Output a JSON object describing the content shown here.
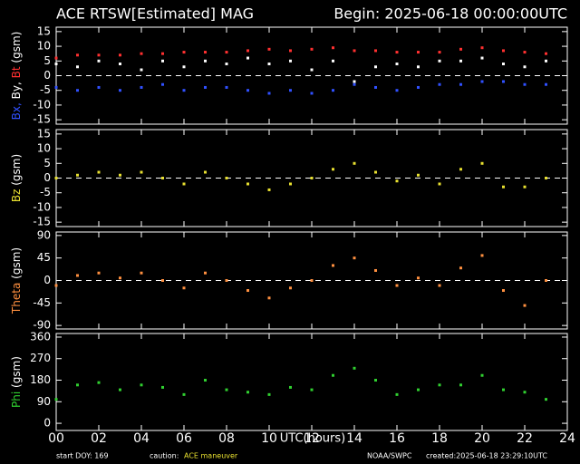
{
  "header": {
    "title": "ACE RTSW[Estimated] MAG",
    "begin": "Begin: 2025-06-18 00:00:00UTC"
  },
  "footer": {
    "doy": "start DOY:  169",
    "caution": "caution:",
    "maneuver": "ACE maneuver",
    "source": "NOAA/SWPC",
    "created": "created:2025-06-18 23:29:10UTC"
  },
  "chart_data": [
    {
      "type": "scatter",
      "ylabel": "(gsm)",
      "ylim": [
        -16.5,
        16.5
      ],
      "yticks": [
        15,
        10,
        5,
        0,
        -5,
        -10,
        -15
      ],
      "zero_line": true,
      "xlim": [
        0,
        24
      ],
      "xticks": [
        {
          "value": 0,
          "label": "00"
        },
        {
          "value": 2,
          "label": "02"
        },
        {
          "value": 4,
          "label": "04"
        },
        {
          "value": 6,
          "label": "06"
        },
        {
          "value": 8,
          "label": "08"
        },
        {
          "value": 10,
          "label": "10"
        },
        {
          "value": 12,
          "label": "12"
        },
        {
          "value": 14,
          "label": "14"
        },
        {
          "value": 16,
          "label": "16"
        },
        {
          "value": 18,
          "label": "18"
        },
        {
          "value": 20,
          "label": "20"
        },
        {
          "value": 22,
          "label": "22"
        },
        {
          "value": 24,
          "label": "24"
        }
      ],
      "x": [
        0,
        1,
        2,
        3,
        4,
        5,
        6,
        7,
        8,
        9,
        10,
        11,
        12,
        13,
        14,
        15,
        16,
        17,
        18,
        19,
        20,
        21,
        22,
        23
      ],
      "series": [
        {
          "name": "Bx,",
          "color": "#3050ff",
          "values": [
            -4,
            -5,
            -4,
            -5,
            -4,
            -3,
            -5,
            -4,
            -4,
            -5,
            -6,
            -5,
            -6,
            -5,
            -3,
            -4,
            -5,
            -4,
            -3,
            -3,
            -2,
            -2,
            -3,
            -3
          ]
        },
        {
          "name": "By,",
          "color": "#ffffff",
          "values": [
            4,
            3,
            5,
            4,
            2,
            5,
            3,
            5,
            4,
            6,
            4,
            5,
            2,
            5,
            -2,
            3,
            4,
            3,
            5,
            5,
            6,
            4,
            3,
            5
          ]
        },
        {
          "name": "Bt",
          "color": "#ff3030",
          "values": [
            6,
            7,
            7,
            7,
            7.5,
            7.5,
            8,
            8,
            8,
            8.5,
            9,
            8.5,
            9,
            9.5,
            8.5,
            8.5,
            8,
            8,
            8,
            9,
            9.5,
            8.5,
            8,
            7.5
          ]
        }
      ]
    },
    {
      "type": "scatter",
      "ylabel": "(gsm)",
      "ylim": [
        -16.5,
        16.5
      ],
      "yticks": [
        15,
        10,
        5,
        0,
        -5,
        -10,
        -15
      ],
      "zero_line": true,
      "xlim": [
        0,
        24
      ],
      "xticks": [
        0,
        2,
        4,
        6,
        8,
        10,
        12,
        14,
        16,
        18,
        20,
        22,
        24
      ],
      "x": [
        0,
        1,
        2,
        3,
        4,
        5,
        6,
        7,
        8,
        9,
        10,
        11,
        12,
        13,
        14,
        15,
        16,
        17,
        18,
        19,
        20,
        21,
        22,
        23
      ],
      "series": [
        {
          "name": "Bz",
          "color": "#e8e030",
          "values": [
            0,
            1,
            2,
            1,
            2,
            0,
            -2,
            2,
            0,
            -2,
            -4,
            -2,
            0,
            3,
            5,
            2,
            -1,
            1,
            -2,
            3,
            5,
            -3,
            -3,
            0
          ]
        }
      ]
    },
    {
      "type": "scatter",
      "ylabel": "(gsm)",
      "ylim": [
        -97,
        97
      ],
      "yticks": [
        90,
        45,
        0,
        -45,
        -90
      ],
      "zero_line": true,
      "xlim": [
        0,
        24
      ],
      "xticks": [
        0,
        2,
        4,
        6,
        8,
        10,
        12,
        14,
        16,
        18,
        20,
        22,
        24
      ],
      "x": [
        0,
        1,
        2,
        3,
        4,
        5,
        6,
        7,
        8,
        9,
        10,
        11,
        12,
        13,
        14,
        15,
        16,
        17,
        18,
        19,
        20,
        21,
        22,
        23
      ],
      "series": [
        {
          "name": "Theta",
          "color": "#ff9040",
          "values": [
            -10,
            10,
            15,
            5,
            15,
            0,
            -15,
            15,
            0,
            -20,
            -35,
            -15,
            0,
            30,
            45,
            20,
            -10,
            5,
            -10,
            25,
            50,
            -20,
            -50,
            0
          ]
        }
      ]
    },
    {
      "type": "scatter",
      "ylabel": "(gsm)",
      "ylim": [
        -30,
        375
      ],
      "yticks": [
        360,
        270,
        180,
        90,
        0
      ],
      "zero_line": false,
      "xlim": [
        0,
        24
      ],
      "xticks": [
        {
          "value": 0,
          "label": "00"
        },
        {
          "value": 2,
          "label": "02"
        },
        {
          "value": 4,
          "label": "04"
        },
        {
          "value": 6,
          "label": "06"
        },
        {
          "value": 8,
          "label": "08"
        },
        {
          "value": 10,
          "label": "10"
        },
        {
          "value": 12,
          "label": "12"
        },
        {
          "value": 14,
          "label": "14"
        },
        {
          "value": 16,
          "label": "16"
        },
        {
          "value": 18,
          "label": "18"
        },
        {
          "value": 20,
          "label": "20"
        },
        {
          "value": 22,
          "label": "22"
        },
        {
          "value": 24,
          "label": "24"
        }
      ],
      "xlabel": "UTC(hours)",
      "x": [
        0,
        1,
        2,
        3,
        4,
        5,
        6,
        7,
        8,
        9,
        10,
        11,
        12,
        13,
        14,
        15,
        16,
        17,
        18,
        19,
        20,
        21,
        22,
        23
      ],
      "series": [
        {
          "name": "Phi",
          "color": "#30d030",
          "values": [
            100,
            160,
            170,
            140,
            160,
            150,
            120,
            180,
            140,
            130,
            120,
            150,
            140,
            200,
            230,
            180,
            120,
            140,
            160,
            160,
            200,
            140,
            130,
            100
          ]
        }
      ]
    }
  ]
}
